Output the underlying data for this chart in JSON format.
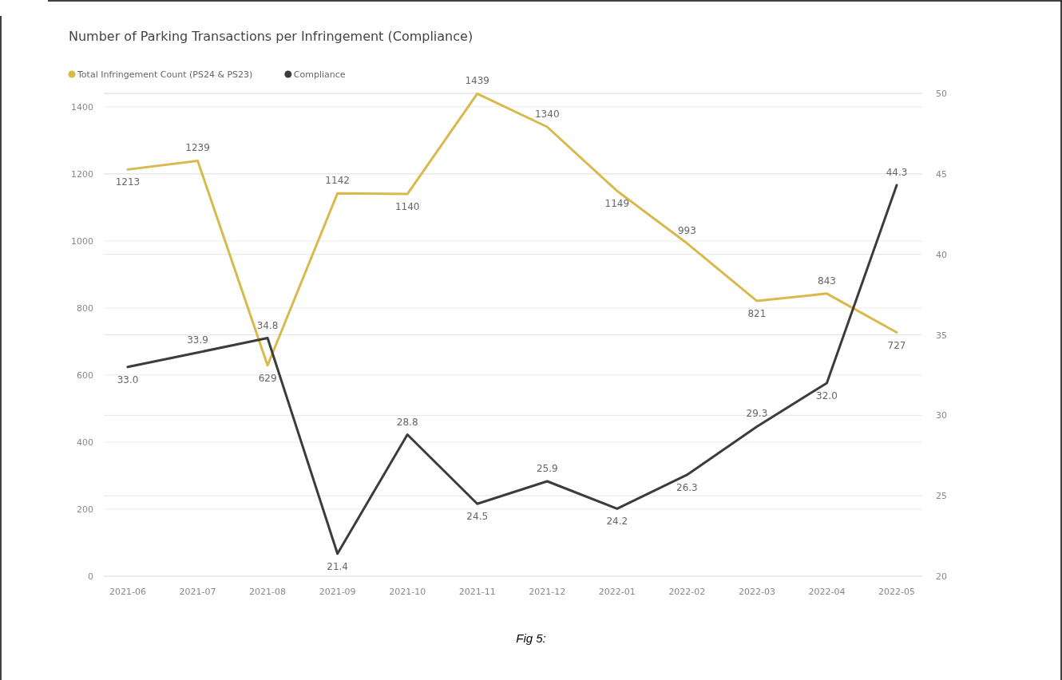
{
  "chart_data": {
    "type": "line",
    "title": "Number of Parking Transactions per Infringement (Compliance)",
    "categories": [
      "2021-06",
      "2021-07",
      "2021-08",
      "2021-09",
      "2021-10",
      "2021-11",
      "2021-12",
      "2022-01",
      "2022-02",
      "2022-03",
      "2022-04",
      "2022-05"
    ],
    "series": [
      {
        "name": "Total Infringement Count (PS24 & PS23)",
        "color": "#d9b84c",
        "values": [
          1213,
          1239,
          629,
          1142,
          1140,
          1439,
          1340,
          1149,
          993,
          821,
          843,
          727
        ]
      },
      {
        "name": "Compliance",
        "color": "#3c3c3c",
        "axis": "y2",
        "values": [
          33.0,
          33.9,
          34.8,
          21.4,
          28.8,
          24.5,
          25.9,
          24.2,
          26.3,
          29.3,
          32.0,
          44.3
        ],
        "value_labels": [
          "33.0",
          "33.9",
          "34.8",
          "21.4",
          "28.8",
          "24.5",
          "25.9",
          "24.2",
          "26.3",
          "29.3",
          "32.0",
          "44.3"
        ]
      }
    ],
    "data_labels": true,
    "ylim": [
      0,
      1440
    ],
    "yticks": [
      0,
      200,
      400,
      600,
      800,
      1000,
      1200,
      1400
    ],
    "y2lim": [
      20,
      50
    ],
    "y2ticks": [
      20,
      25,
      30,
      35,
      40,
      45,
      50
    ],
    "grid": "y",
    "legend": "top left",
    "marker": "none",
    "line_style": "solid",
    "annotations": [
      "Fig 5:"
    ]
  }
}
